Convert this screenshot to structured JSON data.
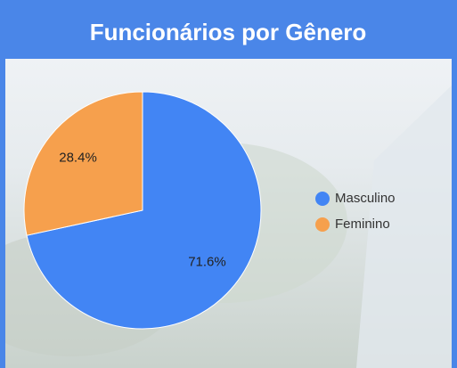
{
  "chart_data": {
    "type": "pie",
    "title": "Funcionários por Gênero",
    "categories": [
      "Masculino",
      "Feminino"
    ],
    "values": [
      71.6,
      28.4
    ],
    "value_labels": [
      "71.6%",
      "28.4%"
    ],
    "colors": [
      "#4285f4",
      "#f6a04d"
    ],
    "legend": "right"
  }
}
